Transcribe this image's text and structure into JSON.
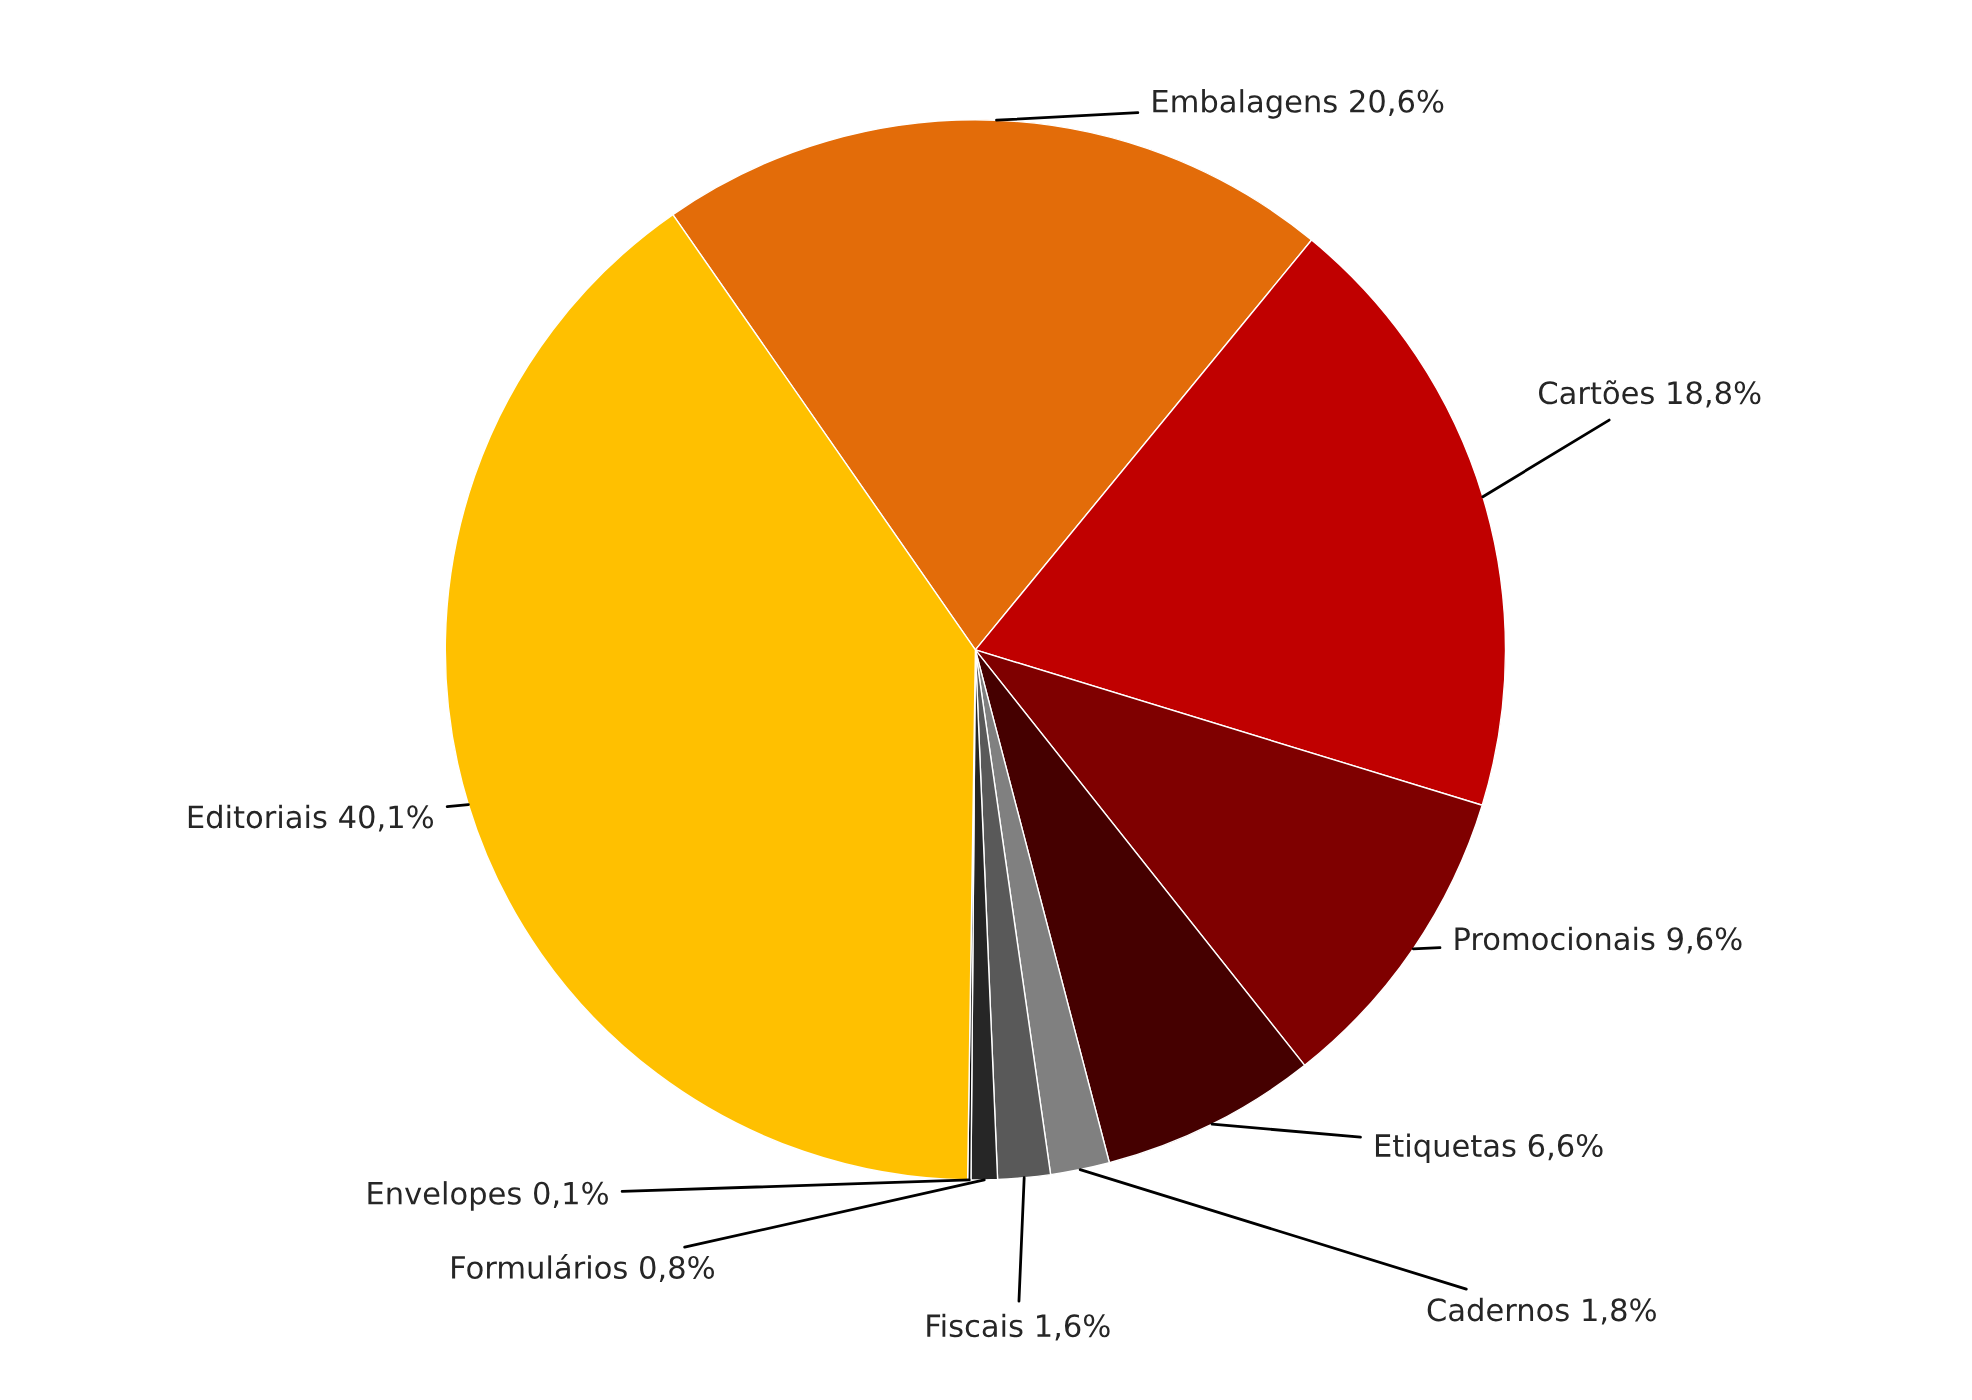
{
  "chart_data": {
    "type": "pie",
    "categories": [
      "Embalagens",
      "Cartões",
      "Promocionais",
      "Etiquetas",
      "Cadernos",
      "Fiscais",
      "Formulários",
      "Envelopes",
      "Editoriais"
    ],
    "values": [
      20.6,
      18.8,
      9.6,
      6.6,
      1.8,
      1.6,
      0.8,
      0.1,
      40.1
    ],
    "value_labels": [
      "20,6%",
      "18,8%",
      "9,6%",
      "6,6%",
      "1,8%",
      "1,6%",
      "0,8%",
      "0,1%",
      "40,1%"
    ],
    "colors": [
      "#e36c09",
      "#c00000",
      "#7f0000",
      "#450000",
      "#808080",
      "#595959",
      "#262626",
      "#0d0d0d",
      "#ffc000"
    ]
  }
}
